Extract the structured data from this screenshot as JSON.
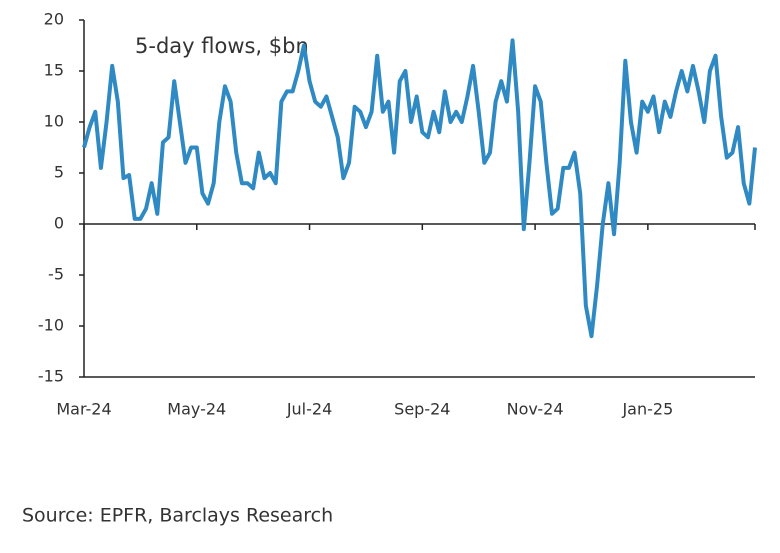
{
  "chart_data": {
    "type": "line",
    "title": "5-day flows, $bn",
    "source": "Source: EPFR, Barclays Research",
    "series": [
      {
        "color": "#2f8ac4",
        "values": [
          7.5,
          9.5,
          11,
          5.5,
          10,
          15.5,
          12,
          4.5,
          4.8,
          0.5,
          0.5,
          1.5,
          4,
          1,
          8,
          8.5,
          14,
          10,
          6,
          7.5,
          7.5,
          3,
          2,
          4,
          10,
          13.5,
          12,
          7,
          4,
          4,
          3.5,
          7,
          4.5,
          5,
          4,
          12,
          13,
          13,
          15,
          17.5,
          14,
          12,
          11.5,
          12.5,
          10.5,
          8.5,
          4.5,
          6,
          11.5,
          11,
          9.5,
          11,
          16.5,
          11,
          12,
          7,
          14,
          15,
          10,
          12.5,
          9,
          8.5,
          11,
          9,
          13,
          10,
          11,
          10,
          12.5,
          15.5,
          11,
          6,
          7,
          12,
          14,
          12,
          18,
          11,
          -0.5,
          6,
          13.5,
          12,
          6,
          1,
          1.5,
          5.5,
          5.5,
          7,
          3,
          -8,
          -11,
          -6,
          0,
          4,
          -1,
          6,
          16,
          10,
          7,
          12,
          11,
          12.5,
          9,
          12,
          10.5,
          13,
          15,
          13,
          15.5,
          13,
          10,
          15,
          16.5,
          10.5,
          6.5,
          7,
          9.5,
          4,
          2,
          7.5
        ]
      }
    ],
    "xlim": [
      0,
      119
    ],
    "xticks": [
      {
        "value": 0,
        "label": "Mar-24"
      },
      {
        "value": 20,
        "label": "May-24"
      },
      {
        "value": 40,
        "label": "Jul-24"
      },
      {
        "value": 60,
        "label": "Sep-24"
      },
      {
        "value": 80,
        "label": "Nov-24"
      },
      {
        "value": 100,
        "label": "Jan-25"
      }
    ],
    "ylim": [
      -15,
      20
    ],
    "yticks": [
      -15,
      -10,
      -5,
      0,
      5,
      10,
      15,
      20
    ]
  }
}
